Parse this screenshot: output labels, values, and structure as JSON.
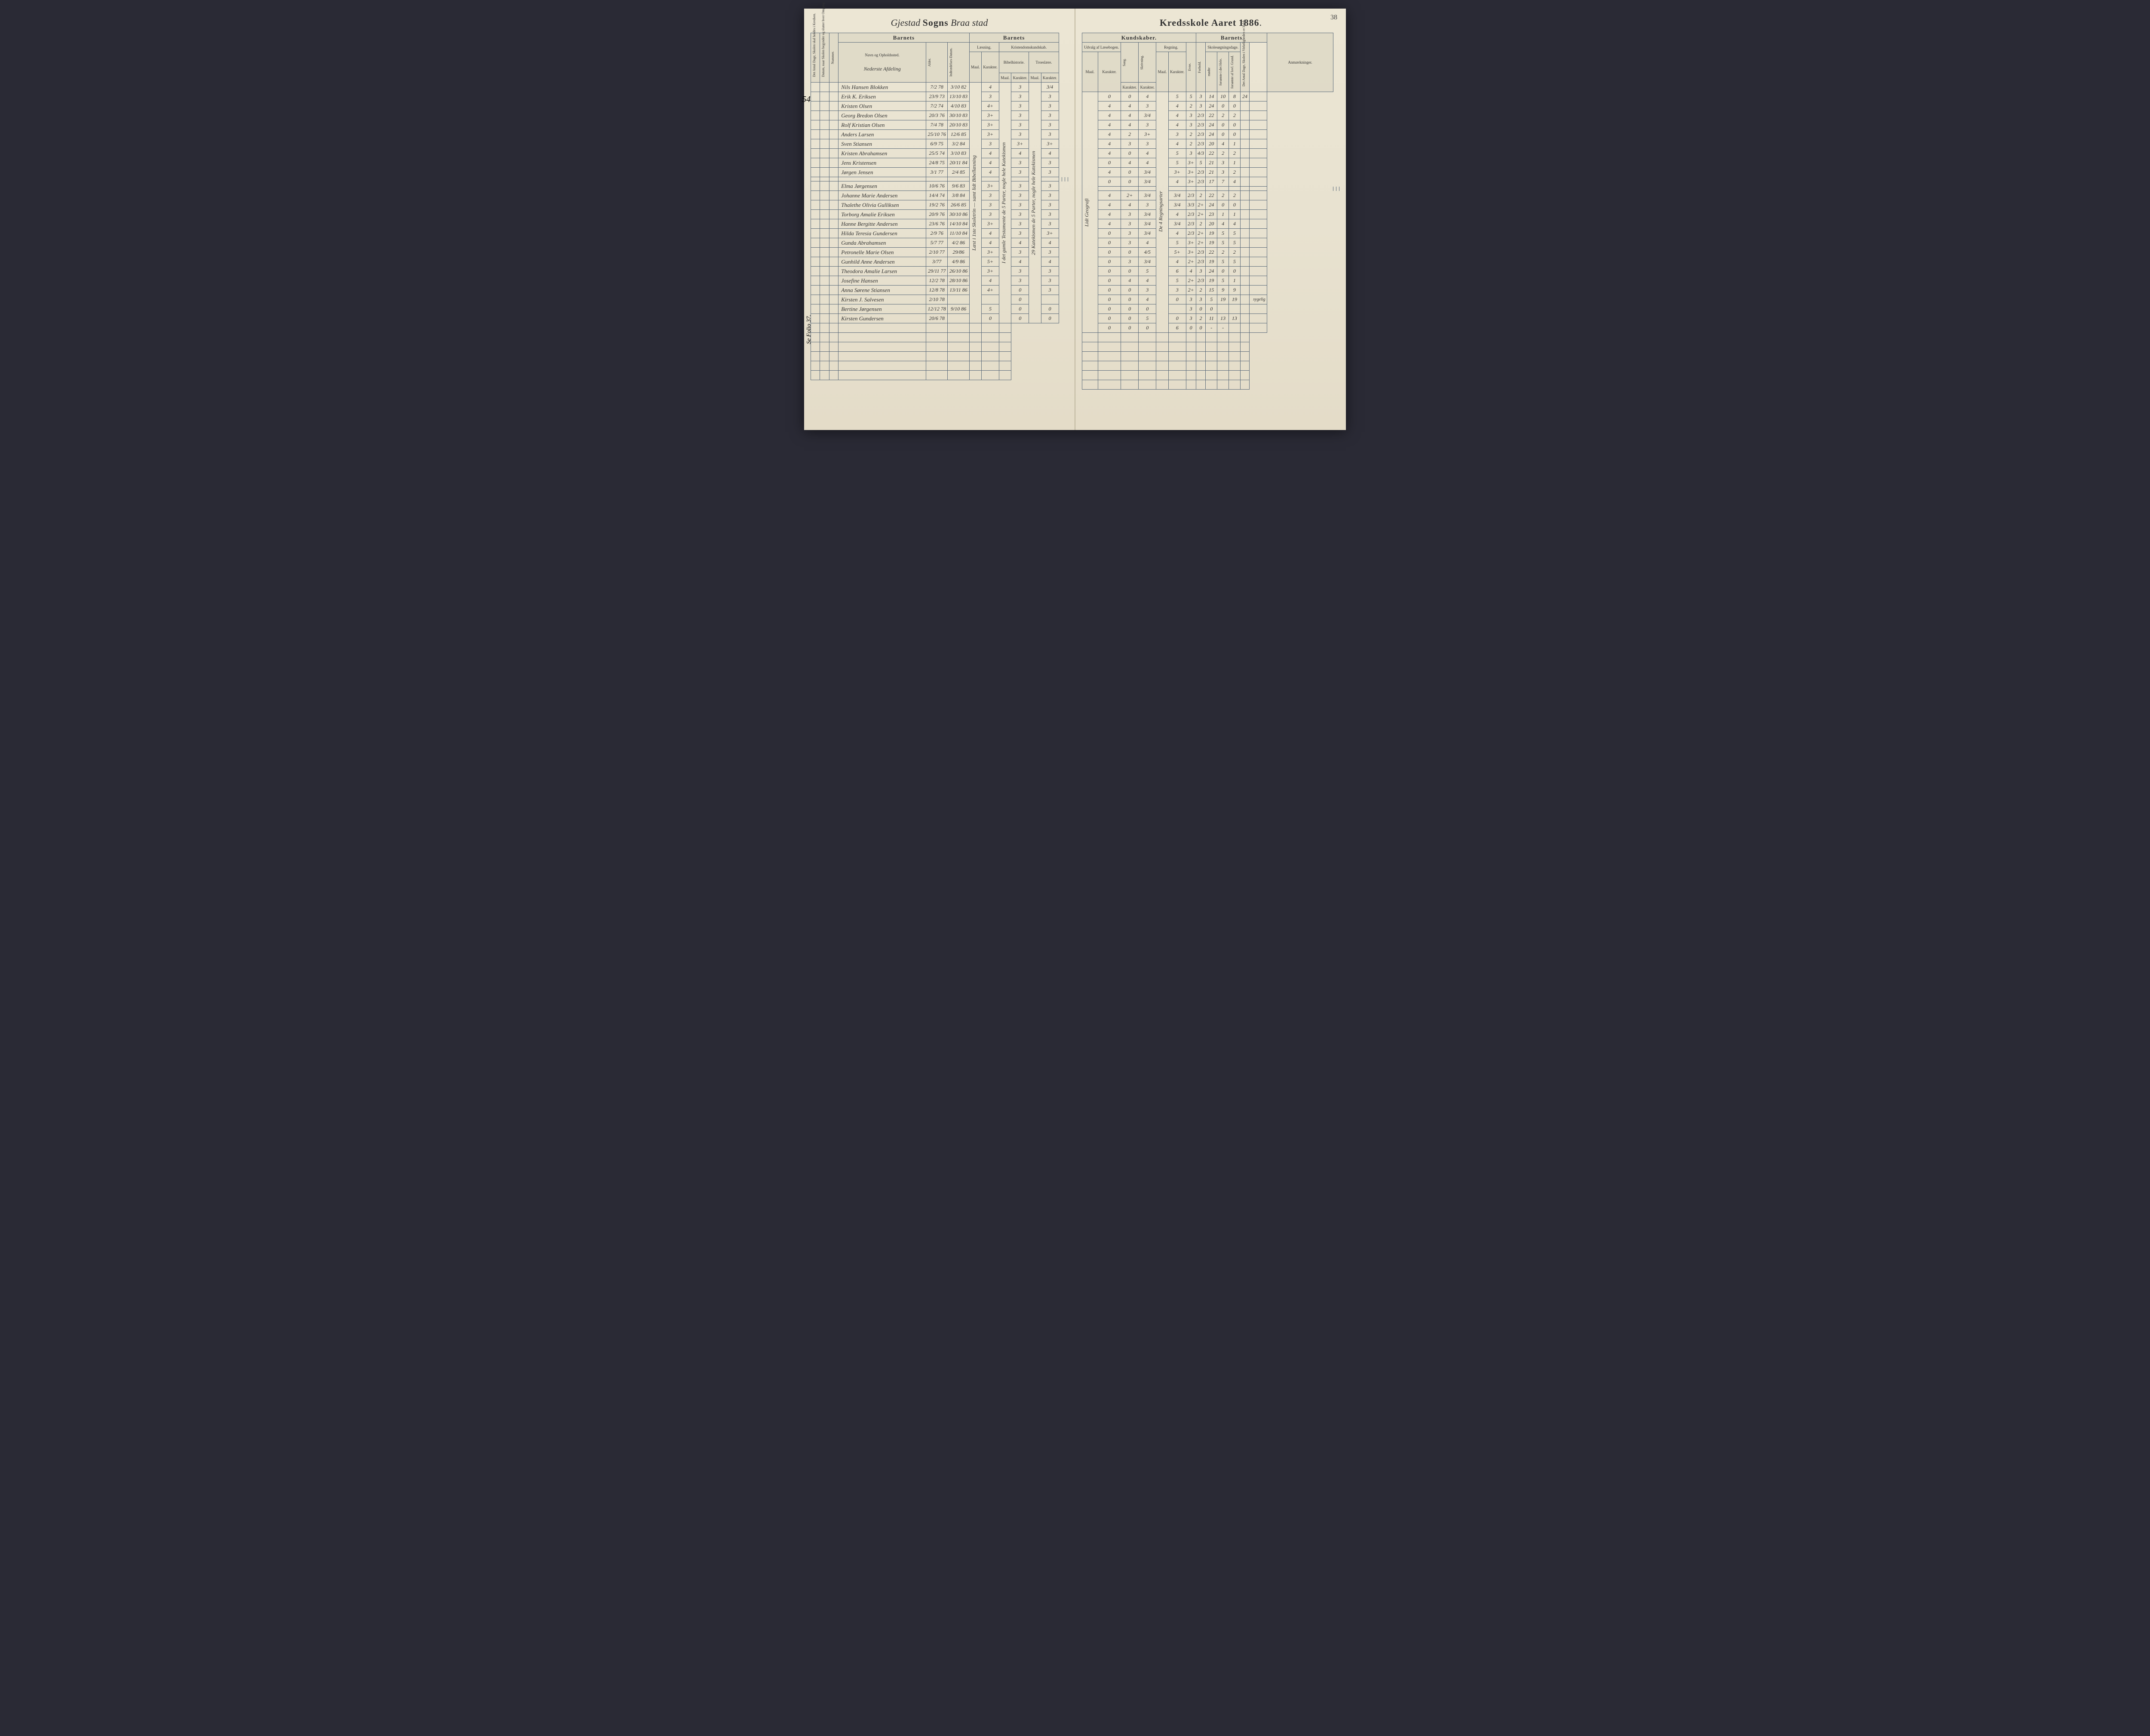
{
  "page_number": "38",
  "title": {
    "parish_script": "Gjestad",
    "sogns": "Sogns",
    "district_script": "Braa stad",
    "kredskole": "Kredsskole Aaret",
    "year": "1886"
  },
  "headers": {
    "left": {
      "col1": "Det Antal Dage, Skolen skal holdes i Kredsen.",
      "col2": "Datum, naar Skolen begynder og slutter hver Omgang.",
      "col3": "Nummer.",
      "barnets": "Barnets",
      "navn": "Navn og Opholdssted.",
      "afdeling": "Nederste Afdeling",
      "alder": "Alder.",
      "indtr": "Indtrædelses-Datum.",
      "barnets2": "Barnets",
      "laesning": "Læsning.",
      "kristendom": "Kristendomskundskab.",
      "maal": "Maal.",
      "karakter": "Karakter.",
      "bibel": "Bibelhistorie.",
      "troes": "Troeslære."
    },
    "right": {
      "kundskaber": "Kundskaber.",
      "udvalg": "Udvalg af Læsebogen.",
      "sang": "Sang.",
      "skriv": "Skrivning.",
      "regning": "Regning.",
      "barnets": "Barnets",
      "evne": "Evne.",
      "forhold": "Forhold.",
      "skoledage": "Skolesøgningsdage.",
      "modte": "mødte",
      "fors_hele": "forsømte i det Hele.",
      "fors_grund": "forsømte af lovl. Grund.",
      "antal": "Det Antal Dage, Skolen i Virkeligheden er holdt.",
      "anm": "Anmærkninger.",
      "maal": "Maal.",
      "karakter": "Karakter."
    }
  },
  "margin_left": "54",
  "side_note": "Se Folio 37.",
  "laesning_note": "Læst i 1ste Skoletrin — samt lidt Bibellæsning",
  "bibel_note": "I det gamle Testamente de 5 Parter, nogle hele Katekismen",
  "troes_note": "29 Katekismen de 5 Parter, nogle hele Katekismen",
  "udvalg_note": "Lidt Geografi",
  "regning_note": "De 4 Regningsarter",
  "students": [
    {
      "name": "Nils Hansen Blokken",
      "ald": "7/2 78",
      "ind": "3/10 82",
      "l_m": "4",
      "l_k": "",
      "b_m": "3",
      "b_k": "",
      "t_m": "3/4",
      "t_k": "",
      "u_m": "",
      "u_k": "0",
      "sa": "0",
      "sk": "4",
      "r_m": "",
      "r_k": "5",
      "ev": "5",
      "fo": "3",
      "md": "14",
      "fh": "10",
      "fg": "8",
      "ad": "24",
      "anm": ""
    },
    {
      "name": "Erik K. Eriksen",
      "ald": "23/9 73",
      "ind": "13/10 83",
      "l_m": "3",
      "l_k": "",
      "b_m": "3",
      "b_k": "",
      "t_m": "3",
      "t_k": "",
      "u_m": "",
      "u_k": "4",
      "sa": "4",
      "sk": "3",
      "r_m": "",
      "r_k": "4",
      "ev": "2",
      "fo": "3",
      "md": "24",
      "fh": "0",
      "fg": "0",
      "ad": "",
      "anm": ""
    },
    {
      "name": "Kristen Olsen",
      "ald": "7/2 74",
      "ind": "4/10 83",
      "l_m": "4+",
      "l_k": "",
      "b_m": "3",
      "b_k": "",
      "t_m": "3",
      "t_k": "",
      "u_m": "",
      "u_k": "4",
      "sa": "4",
      "sk": "3/4",
      "r_m": "",
      "r_k": "4",
      "ev": "3",
      "fo": "2/3",
      "md": "22",
      "fh": "2",
      "fg": "2",
      "ad": "",
      "anm": ""
    },
    {
      "name": "Georg Bredon Olsen",
      "ald": "20/3 76",
      "ind": "30/10 83",
      "l_m": "3+",
      "l_k": "",
      "b_m": "3",
      "b_k": "",
      "t_m": "3",
      "t_k": "",
      "u_m": "",
      "u_k": "4",
      "sa": "4",
      "sk": "3",
      "r_m": "",
      "r_k": "4",
      "ev": "3",
      "fo": "2/3",
      "md": "24",
      "fh": "0",
      "fg": "0",
      "ad": "",
      "anm": ""
    },
    {
      "name": "Rolf Kristian Olsen",
      "ald": "7/4 78",
      "ind": "20/10 83",
      "l_m": "3+",
      "l_k": "",
      "b_m": "3",
      "b_k": "",
      "t_m": "3",
      "t_k": "",
      "u_m": "",
      "u_k": "4",
      "sa": "2",
      "sk": "3+",
      "r_m": "",
      "r_k": "3",
      "ev": "2",
      "fo": "2/3",
      "md": "24",
      "fh": "0",
      "fg": "0",
      "ad": "",
      "anm": ""
    },
    {
      "name": "Anders Larsen",
      "ald": "25/10 76",
      "ind": "12/6 85",
      "l_m": "3+",
      "l_k": "",
      "b_m": "3",
      "b_k": "",
      "t_m": "3",
      "t_k": "",
      "u_m": "",
      "u_k": "4",
      "sa": "3",
      "sk": "3",
      "r_m": "",
      "r_k": "4",
      "ev": "2",
      "fo": "2/3",
      "md": "20",
      "fh": "4",
      "fg": "1",
      "ad": "",
      "anm": ""
    },
    {
      "name": "Sven Stiansen",
      "ald": "6/9 75",
      "ind": "3/2 84",
      "l_m": "3",
      "l_k": "",
      "b_m": "3+",
      "b_k": "",
      "t_m": "3+",
      "t_k": "",
      "u_m": "",
      "u_k": "4",
      "sa": "0",
      "sk": "4",
      "r_m": "",
      "r_k": "5",
      "ev": "3",
      "fo": "4/3",
      "md": "22",
      "fh": "2",
      "fg": "2",
      "ad": "",
      "anm": ""
    },
    {
      "name": "Kristen Abrahamsen",
      "ald": "25/5 74",
      "ind": "3/10 83",
      "l_m": "4",
      "l_k": "",
      "b_m": "4",
      "b_k": "",
      "t_m": "4",
      "t_k": "",
      "u_m": "",
      "u_k": "0",
      "sa": "4",
      "sk": "4",
      "r_m": "",
      "r_k": "5",
      "ev": "3+",
      "fo": "5",
      "md": "21",
      "fh": "3",
      "fg": "1",
      "ad": "",
      "anm": ""
    },
    {
      "name": "Jens Kristensen",
      "ald": "24/8 75",
      "ind": "20/11 84",
      "l_m": "4",
      "l_k": "",
      "b_m": "3",
      "b_k": "",
      "t_m": "3",
      "t_k": "",
      "u_m": "",
      "u_k": "4",
      "sa": "0",
      "sk": "3/4",
      "r_m": "",
      "r_k": "3+",
      "ev": "3+",
      "fo": "2/3",
      "md": "21",
      "fh": "3",
      "fg": "2",
      "ad": "",
      "anm": ""
    },
    {
      "name": "Jørgen Jensen",
      "ald": "3/1 77",
      "ind": "2/4 85",
      "l_m": "4",
      "l_k": "",
      "b_m": "3",
      "b_k": "",
      "t_m": "3",
      "t_k": "",
      "u_m": "",
      "u_k": "0",
      "sa": "0",
      "sk": "3/4",
      "r_m": "",
      "r_k": "4",
      "ev": "3+",
      "fo": "2/3",
      "md": "17",
      "fh": "7",
      "fg": "4",
      "ad": "",
      "anm": ""
    },
    {
      "name": "Elma Jørgensen",
      "ald": "10/6 76",
      "ind": "9/6 83",
      "l_m": "3+",
      "l_k": "",
      "b_m": "3",
      "b_k": "",
      "t_m": "3",
      "t_k": "",
      "u_m": "",
      "u_k": "4",
      "sa": "2+",
      "sk": "3/4",
      "r_m": "",
      "r_k": "3/4",
      "ev": "2/3",
      "fo": "2",
      "md": "22",
      "fh": "2",
      "fg": "2",
      "ad": "",
      "anm": ""
    },
    {
      "name": "Johanne Marie Andersen",
      "ald": "14/4 74",
      "ind": "3/8 84",
      "l_m": "3",
      "l_k": "",
      "b_m": "3",
      "b_k": "",
      "t_m": "3",
      "t_k": "",
      "u_m": "",
      "u_k": "4",
      "sa": "4",
      "sk": "3",
      "r_m": "",
      "r_k": "3/4",
      "ev": "3/3",
      "fo": "2+",
      "md": "24",
      "fh": "0",
      "fg": "0",
      "ad": "",
      "anm": ""
    },
    {
      "name": "Thalethe Olivia Gulliksen",
      "ald": "19/2 76",
      "ind": "26/6 85",
      "l_m": "3",
      "l_k": "",
      "b_m": "3",
      "b_k": "",
      "t_m": "3",
      "t_k": "",
      "u_m": "",
      "u_k": "4",
      "sa": "3",
      "sk": "3/4",
      "r_m": "",
      "r_k": "4",
      "ev": "2/3",
      "fo": "2+",
      "md": "23",
      "fh": "1",
      "fg": "1",
      "ad": "",
      "anm": ""
    },
    {
      "name": "Torborg Amalie Eriksen",
      "ald": "20/9 76",
      "ind": "30/10 86",
      "l_m": "3",
      "l_k": "",
      "b_m": "3",
      "b_k": "",
      "t_m": "3",
      "t_k": "",
      "u_m": "",
      "u_k": "4",
      "sa": "3",
      "sk": "3/4",
      "r_m": "",
      "r_k": "3/4",
      "ev": "2/3",
      "fo": "2",
      "md": "20",
      "fh": "4",
      "fg": "4",
      "ad": "",
      "anm": ""
    },
    {
      "name": "Hanne Bergitte Andersen",
      "ald": "23/6 76",
      "ind": "14/10 84",
      "l_m": "3+",
      "l_k": "",
      "b_m": "3",
      "b_k": "",
      "t_m": "3",
      "t_k": "",
      "u_m": "",
      "u_k": "0",
      "sa": "3",
      "sk": "3/4",
      "r_m": "",
      "r_k": "4",
      "ev": "2/3",
      "fo": "2+",
      "md": "19",
      "fh": "5",
      "fg": "5",
      "ad": "",
      "anm": ""
    },
    {
      "name": "Hilda Teresia Gundersen",
      "ald": "2/9 76",
      "ind": "11/10 84",
      "l_m": "4",
      "l_k": "",
      "b_m": "3",
      "b_k": "",
      "t_m": "3+",
      "t_k": "",
      "u_m": "",
      "u_k": "0",
      "sa": "3",
      "sk": "4",
      "r_m": "",
      "r_k": "5",
      "ev": "3+",
      "fo": "2+",
      "md": "19",
      "fh": "5",
      "fg": "5",
      "ad": "",
      "anm": ""
    },
    {
      "name": "Gunda Abrahamsen",
      "ald": "5/7 77",
      "ind": "4/2 86",
      "l_m": "4",
      "l_k": "",
      "b_m": "4",
      "b_k": "",
      "t_m": "4",
      "t_k": "",
      "u_m": "",
      "u_k": "0",
      "sa": "0",
      "sk": "4/5",
      "r_m": "",
      "r_k": "5+",
      "ev": "3+",
      "fo": "2/3",
      "md": "22",
      "fh": "2",
      "fg": "2",
      "ad": "",
      "anm": ""
    },
    {
      "name": "Petronelle Marie Olsen",
      "ald": "2/10 77",
      "ind": "29/86",
      "l_m": "3+",
      "l_k": "",
      "b_m": "3",
      "b_k": "",
      "t_m": "3",
      "t_k": "",
      "u_m": "",
      "u_k": "0",
      "sa": "3",
      "sk": "3/4",
      "r_m": "",
      "r_k": "4",
      "ev": "2+",
      "fo": "2/3",
      "md": "19",
      "fh": "5",
      "fg": "5",
      "ad": "",
      "anm": ""
    },
    {
      "name": "Gunhild Anne Andersen",
      "ald": "3/77",
      "ind": "4/9 86",
      "l_m": "5+",
      "l_k": "",
      "b_m": "4",
      "b_k": "",
      "t_m": "4",
      "t_k": "",
      "u_m": "",
      "u_k": "0",
      "sa": "0",
      "sk": "5",
      "r_m": "",
      "r_k": "6",
      "ev": "4",
      "fo": "3",
      "md": "24",
      "fh": "0",
      "fg": "0",
      "ad": "",
      "anm": ""
    },
    {
      "name": "Theodora Amalie Larsen",
      "ald": "29/11 77",
      "ind": "26/10 86",
      "l_m": "3+",
      "l_k": "",
      "b_m": "3",
      "b_k": "",
      "t_m": "3",
      "t_k": "",
      "u_m": "",
      "u_k": "0",
      "sa": "4",
      "sk": "4",
      "r_m": "",
      "r_k": "5",
      "ev": "2+",
      "fo": "2/3",
      "md": "19",
      "fh": "5",
      "fg": "1",
      "ad": "",
      "anm": ""
    },
    {
      "name": "Josefine Hansen",
      "ald": "12/2 78",
      "ind": "28/10 86",
      "l_m": "4",
      "l_k": "",
      "b_m": "3",
      "b_k": "",
      "t_m": "3",
      "t_k": "",
      "u_m": "",
      "u_k": "0",
      "sa": "0",
      "sk": "3",
      "r_m": "",
      "r_k": "3",
      "ev": "2+",
      "fo": "2",
      "md": "15",
      "fh": "9",
      "fg": "9",
      "ad": "",
      "anm": ""
    },
    {
      "name": "Anna Sørene Stiansen",
      "ald": "12/8 78",
      "ind": "13/11 86",
      "l_m": "4+",
      "l_k": "",
      "b_m": "0",
      "b_k": "",
      "t_m": "3",
      "t_k": "",
      "u_m": "",
      "u_k": "0",
      "sa": "0",
      "sk": "4",
      "r_m": "",
      "r_k": "0",
      "ev": "3",
      "fo": "3",
      "md": "5",
      "fh": "19",
      "fg": "19",
      "ad": "",
      "anm": "sygelig"
    },
    {
      "name": "Kirsten J. Salvesen",
      "ald": "2/10 78",
      "ind": "",
      "l_m": "",
      "l_k": "",
      "b_m": "0",
      "b_k": "",
      "t_m": "",
      "t_k": "",
      "u_m": "",
      "u_k": "0",
      "sa": "0",
      "sk": "0",
      "r_m": "",
      "r_k": "",
      "ev": "3",
      "fo": "0",
      "md": "0",
      "fh": "",
      "fg": "",
      "ad": "",
      "anm": ""
    },
    {
      "name": "Bertine Jørgensen",
      "ald": "12/12 78",
      "ind": "9/10 86",
      "l_m": "5",
      "l_k": "",
      "b_m": "0",
      "b_k": "",
      "t_m": "0",
      "t_k": "",
      "u_m": "",
      "u_k": "0",
      "sa": "0",
      "sk": "5",
      "r_m": "",
      "r_k": "0",
      "ev": "3",
      "fo": "2",
      "md": "11",
      "fh": "13",
      "fg": "13",
      "ad": "",
      "anm": ""
    },
    {
      "name": "Kirsten Gundersen",
      "ald": "20/6 78",
      "ind": "",
      "l_m": "0",
      "l_k": "",
      "b_m": "0",
      "b_k": "",
      "t_m": "0",
      "t_k": "",
      "u_m": "",
      "u_k": "0",
      "sa": "0",
      "sk": "0",
      "r_m": "",
      "r_k": "6",
      "ev": "0",
      "fo": "0",
      "md": "-",
      "fh": "-",
      "fg": "",
      "ad": "",
      "anm": ""
    }
  ]
}
